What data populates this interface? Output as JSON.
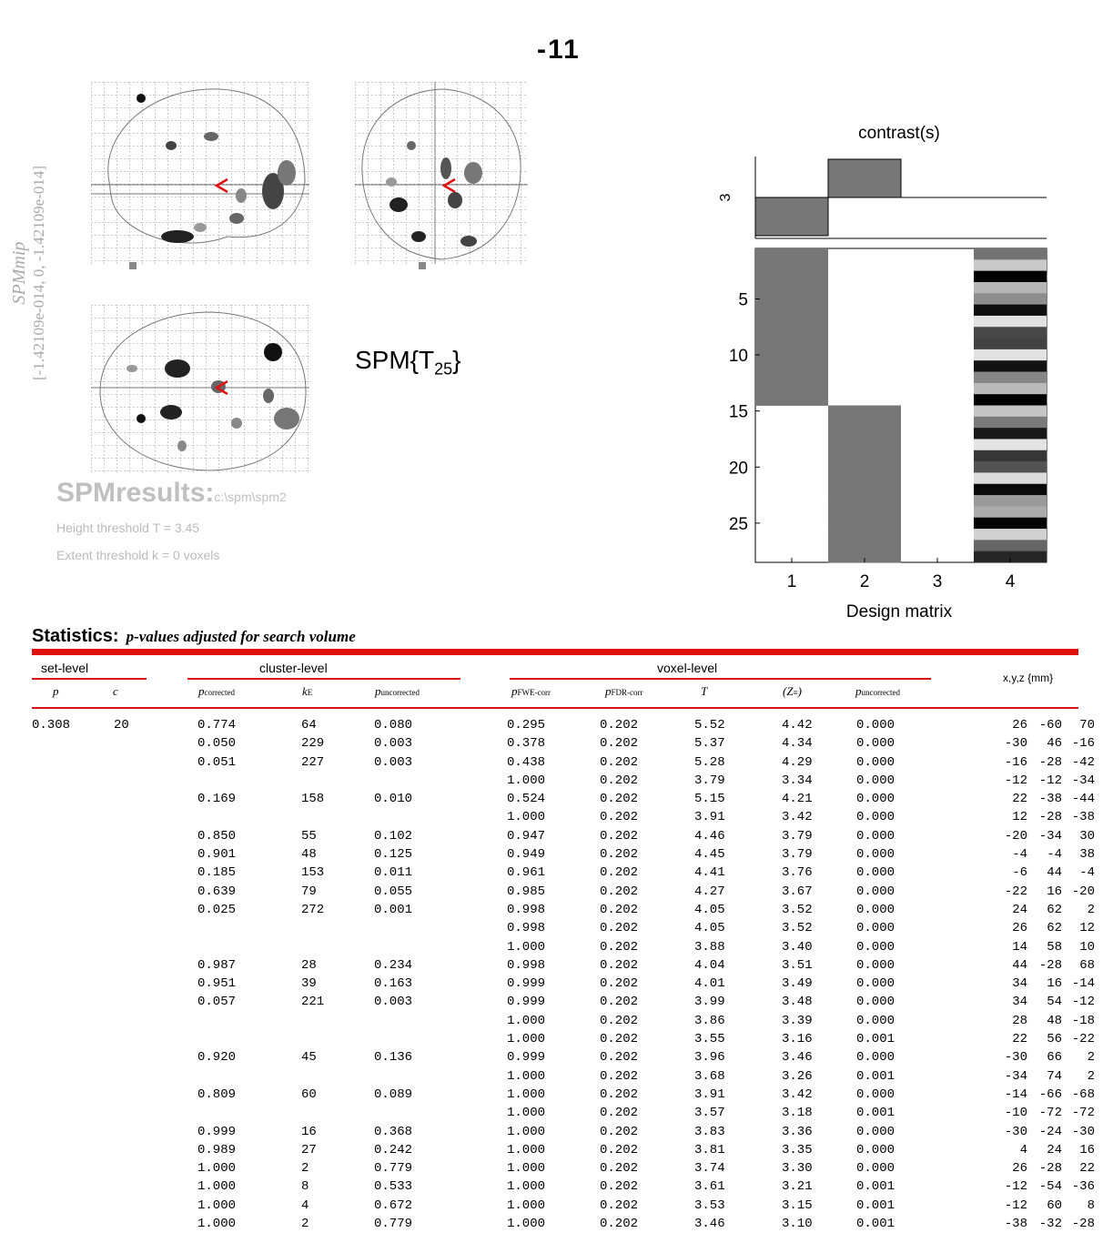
{
  "header": {
    "title": "-11"
  },
  "mip": {
    "label_title": "SPMmip",
    "label_coords": "[-1.42109e-014, 0, -1.42109e-014]",
    "stat_name": "SPM{T",
    "stat_df": "25",
    "stat_close": "}"
  },
  "results": {
    "title": "SPMresults:",
    "path": "c:\\spm\\spm2",
    "height_threshold": "Height threshold T = 3.45",
    "extent_threshold": "Extent threshold k = 0 voxels"
  },
  "design": {
    "contrast_title": "contrast(s)",
    "contrast_label": "3",
    "contrast_weights": [
      -1,
      1,
      0,
      0
    ],
    "x_label": "Design matrix",
    "x_ticks": [
      "1",
      "2",
      "3",
      "4"
    ],
    "y_ticks": [
      "5",
      "10",
      "15",
      "20",
      "25"
    ],
    "rows": 28
  },
  "stats": {
    "heading": "Statistics:",
    "subheading": "p-values adjusted for search volume",
    "groups": {
      "set": "set-level",
      "cluster": "cluster-level",
      "voxel": "voxel-level",
      "coords": "x,y,z {mm}"
    },
    "col_headers": {
      "set_p": "p",
      "set_c": "c",
      "cl_pcorr": "p",
      "cl_pcorr_sub": "corrected",
      "cl_ke": "k",
      "cl_ke_sub": "E",
      "cl_punc": "p",
      "cl_punc_sub": "uncorrected",
      "vx_pfwe": "p",
      "vx_pfwe_sub": "FWE-corr",
      "vx_pfdr": "p",
      "vx_pfdr_sub": "FDR-corr",
      "vx_t": "T",
      "vx_z": "(Z",
      "vx_z_sub": "≡",
      "vx_z_close": ")",
      "vx_punc": "p",
      "vx_punc_sub": "uncorrected"
    },
    "rows": [
      [
        "0.308",
        "20",
        "0.774",
        "64",
        "0.080",
        "0.295",
        "0.202",
        "5.52",
        "4.42",
        "0.000",
        "26",
        "-60",
        "70"
      ],
      [
        "",
        "",
        "0.050",
        "229",
        "0.003",
        "0.378",
        "0.202",
        "5.37",
        "4.34",
        "0.000",
        "-30",
        "46",
        "-16"
      ],
      [
        "",
        "",
        "0.051",
        "227",
        "0.003",
        "0.438",
        "0.202",
        "5.28",
        "4.29",
        "0.000",
        "-16",
        "-28",
        "-42"
      ],
      [
        "",
        "",
        "",
        "",
        "",
        "1.000",
        "0.202",
        "3.79",
        "3.34",
        "0.000",
        "-12",
        "-12",
        "-34"
      ],
      [
        "",
        "",
        "0.169",
        "158",
        "0.010",
        "0.524",
        "0.202",
        "5.15",
        "4.21",
        "0.000",
        "22",
        "-38",
        "-44"
      ],
      [
        "",
        "",
        "",
        "",
        "",
        "1.000",
        "0.202",
        "3.91",
        "3.42",
        "0.000",
        "12",
        "-28",
        "-38"
      ],
      [
        "",
        "",
        "0.850",
        "55",
        "0.102",
        "0.947",
        "0.202",
        "4.46",
        "3.79",
        "0.000",
        "-20",
        "-34",
        "30"
      ],
      [
        "",
        "",
        "0.901",
        "48",
        "0.125",
        "0.949",
        "0.202",
        "4.45",
        "3.79",
        "0.000",
        "-4",
        "-4",
        "38"
      ],
      [
        "",
        "",
        "0.185",
        "153",
        "0.011",
        "0.961",
        "0.202",
        "4.41",
        "3.76",
        "0.000",
        "-6",
        "44",
        "-4"
      ],
      [
        "",
        "",
        "0.639",
        "79",
        "0.055",
        "0.985",
        "0.202",
        "4.27",
        "3.67",
        "0.000",
        "-22",
        "16",
        "-20"
      ],
      [
        "",
        "",
        "0.025",
        "272",
        "0.001",
        "0.998",
        "0.202",
        "4.05",
        "3.52",
        "0.000",
        "24",
        "62",
        "2"
      ],
      [
        "",
        "",
        "",
        "",
        "",
        "0.998",
        "0.202",
        "4.05",
        "3.52",
        "0.000",
        "26",
        "62",
        "12"
      ],
      [
        "",
        "",
        "",
        "",
        "",
        "1.000",
        "0.202",
        "3.88",
        "3.40",
        "0.000",
        "14",
        "58",
        "10"
      ],
      [
        "",
        "",
        "0.987",
        "28",
        "0.234",
        "0.998",
        "0.202",
        "4.04",
        "3.51",
        "0.000",
        "44",
        "-28",
        "68"
      ],
      [
        "",
        "",
        "0.951",
        "39",
        "0.163",
        "0.999",
        "0.202",
        "4.01",
        "3.49",
        "0.000",
        "34",
        "16",
        "-14"
      ],
      [
        "",
        "",
        "0.057",
        "221",
        "0.003",
        "0.999",
        "0.202",
        "3.99",
        "3.48",
        "0.000",
        "34",
        "54",
        "-12"
      ],
      [
        "",
        "",
        "",
        "",
        "",
        "1.000",
        "0.202",
        "3.86",
        "3.39",
        "0.000",
        "28",
        "48",
        "-18"
      ],
      [
        "",
        "",
        "",
        "",
        "",
        "1.000",
        "0.202",
        "3.55",
        "3.16",
        "0.001",
        "22",
        "56",
        "-22"
      ],
      [
        "",
        "",
        "0.920",
        "45",
        "0.136",
        "0.999",
        "0.202",
        "3.96",
        "3.46",
        "0.000",
        "-30",
        "66",
        "2"
      ],
      [
        "",
        "",
        "",
        "",
        "",
        "1.000",
        "0.202",
        "3.68",
        "3.26",
        "0.001",
        "-34",
        "74",
        "2"
      ],
      [
        "",
        "",
        "0.809",
        "60",
        "0.089",
        "1.000",
        "0.202",
        "3.91",
        "3.42",
        "0.000",
        "-14",
        "-66",
        "-68"
      ],
      [
        "",
        "",
        "",
        "",
        "",
        "1.000",
        "0.202",
        "3.57",
        "3.18",
        "0.001",
        "-10",
        "-72",
        "-72"
      ],
      [
        "",
        "",
        "0.999",
        "16",
        "0.368",
        "1.000",
        "0.202",
        "3.83",
        "3.36",
        "0.000",
        "-30",
        "-24",
        "-30"
      ],
      [
        "",
        "",
        "0.989",
        "27",
        "0.242",
        "1.000",
        "0.202",
        "3.81",
        "3.35",
        "0.000",
        "4",
        "24",
        "16"
      ],
      [
        "",
        "",
        "1.000",
        "2",
        "0.779",
        "1.000",
        "0.202",
        "3.74",
        "3.30",
        "0.000",
        "26",
        "-28",
        "22"
      ],
      [
        "",
        "",
        "1.000",
        "8",
        "0.533",
        "1.000",
        "0.202",
        "3.61",
        "3.21",
        "0.001",
        "-12",
        "-54",
        "-36"
      ],
      [
        "",
        "",
        "1.000",
        "4",
        "0.672",
        "1.000",
        "0.202",
        "3.53",
        "3.15",
        "0.001",
        "-12",
        "60",
        "8"
      ],
      [
        "",
        "",
        "1.000",
        "2",
        "0.779",
        "1.000",
        "0.202",
        "3.46",
        "3.10",
        "0.001",
        "-38",
        "-32",
        "-28"
      ]
    ]
  }
}
